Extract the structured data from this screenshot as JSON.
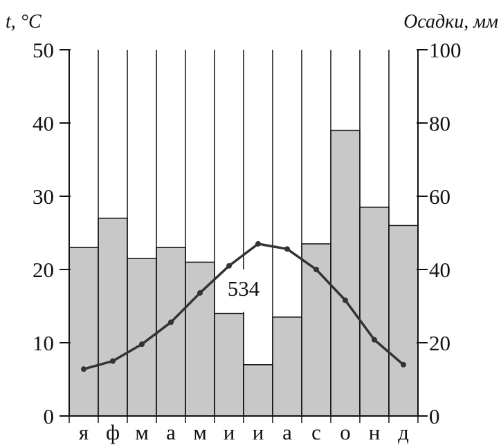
{
  "chart_data": {
    "type": "bar",
    "title": "",
    "y_left_label": "t, °C",
    "y_right_label": "Осадки, мм",
    "categories": [
      "я",
      "ф",
      "м",
      "а",
      "м",
      "и",
      "и",
      "а",
      "с",
      "о",
      "н",
      "д"
    ],
    "y_left_range": [
      0,
      50
    ],
    "y_left_ticks": [
      "0",
      "10",
      "20",
      "30",
      "40",
      "50"
    ],
    "y_right_range": [
      0,
      100
    ],
    "y_right_ticks": [
      "0",
      "20",
      "40",
      "60",
      "80",
      "100"
    ],
    "grid": "vertical lines at month boundaries",
    "series": [
      {
        "type": "bar",
        "axis": "right",
        "values": [
          46,
          54,
          43,
          46,
          42,
          28,
          14,
          27,
          47,
          78,
          57,
          52
        ],
        "color": "#c8c8c8"
      },
      {
        "type": "line",
        "axis": "left",
        "values": [
          6.4,
          7.5,
          9.8,
          12.8,
          16.8,
          20.5,
          23.5,
          22.8,
          20.0,
          15.8,
          10.4,
          7.0
        ],
        "color": "#333333"
      }
    ],
    "annotation": "534"
  },
  "colors": {
    "bar_fill": "#c8c8c8",
    "line": "#333333",
    "axis": "#111111",
    "annotation_box": "#ffffff"
  }
}
